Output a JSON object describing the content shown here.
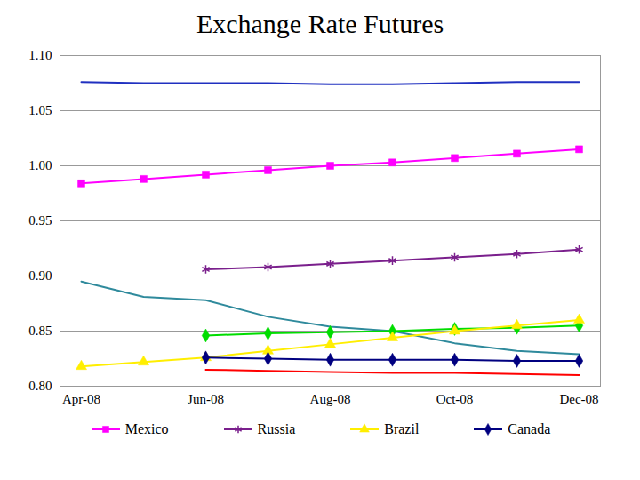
{
  "chart_data": {
    "type": "line",
    "title": "Exchange Rate Futures",
    "categories": [
      "Apr-08",
      null,
      "Jun-08",
      null,
      "Aug-08",
      null,
      "Oct-08",
      null,
      "Dec-08"
    ],
    "ylim": [
      0.8,
      1.1
    ],
    "yticks": [
      {
        "value": 0.8,
        "label": "0.80"
      },
      0.85,
      {
        "value": 0.9,
        "label": "0.90"
      },
      0.95,
      {
        "value": 1.0,
        "label": "1.00"
      },
      1.05,
      {
        "value": 1.1,
        "label": "1.10"
      }
    ],
    "grid": true,
    "legend": "bottom",
    "series": [
      {
        "color": "#2030c0",
        "marker": "none",
        "values": [
          1.076,
          1.075,
          1.075,
          1.075,
          1.074,
          1.074,
          1.075,
          1.076,
          1.076
        ]
      },
      {
        "name": "Mexico",
        "color": "#ff00ff",
        "marker": "square",
        "values": [
          0.984,
          0.988,
          0.992,
          0.996,
          1.0,
          1.003,
          1.007,
          1.011,
          1.015
        ]
      },
      {
        "name": "Russia",
        "color": "#7a1f8c",
        "marker": "asterisk",
        "values": [
          null,
          null,
          0.906,
          0.908,
          0.911,
          0.914,
          0.917,
          0.92,
          0.924
        ]
      },
      {
        "color": "#2f8a9c",
        "marker": "none",
        "values": [
          0.895,
          0.881,
          0.878,
          0.863,
          0.854,
          0.85,
          0.839,
          0.832,
          0.829
        ]
      },
      {
        "color": "#00dd00",
        "marker": "diamond",
        "values": [
          null,
          null,
          0.846,
          0.848,
          0.849,
          0.85,
          0.852,
          0.853,
          0.855
        ]
      },
      {
        "name": "Brazil",
        "color": "#ffee00",
        "marker": "triangle",
        "values": [
          0.818,
          0.822,
          0.826,
          0.832,
          0.838,
          0.844,
          0.85,
          0.855,
          0.86
        ]
      },
      {
        "name": "Canada",
        "color": "#000080",
        "marker": "diamond",
        "values": [
          null,
          null,
          0.826,
          0.825,
          0.824,
          0.824,
          0.824,
          0.823,
          0.823
        ]
      },
      {
        "color": "#ff0000",
        "marker": "none",
        "values": [
          null,
          null,
          0.815,
          0.814,
          0.813,
          0.812,
          0.812,
          0.811,
          0.81
        ]
      }
    ]
  }
}
